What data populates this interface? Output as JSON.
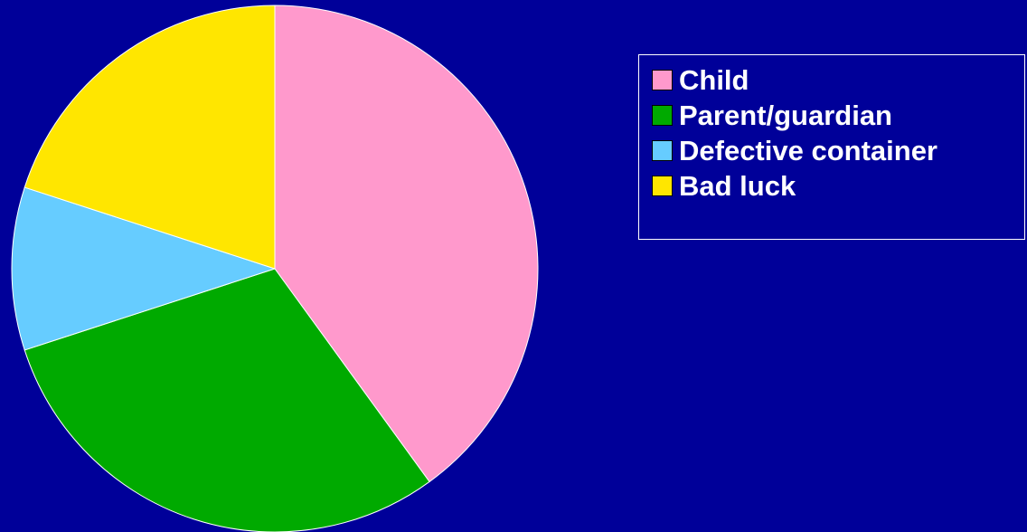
{
  "chart_data": {
    "type": "pie",
    "title": "",
    "slices": [
      {
        "label": "Child",
        "value": 40,
        "color": "#FF99CC"
      },
      {
        "label": "Parent/guardian",
        "value": 30,
        "color": "#00AA00"
      },
      {
        "label": "Defective container",
        "value": 10,
        "color": "#66CCFF"
      },
      {
        "label": "Bad luck",
        "value": 20,
        "color": "#FFE600"
      }
    ],
    "start": "12 o'clock",
    "direction": "clockwise",
    "legend_position": "right"
  },
  "colors": {
    "background": "#000099",
    "slice_border": "#FFFFFF",
    "legend_text": "#FFFFFF"
  }
}
